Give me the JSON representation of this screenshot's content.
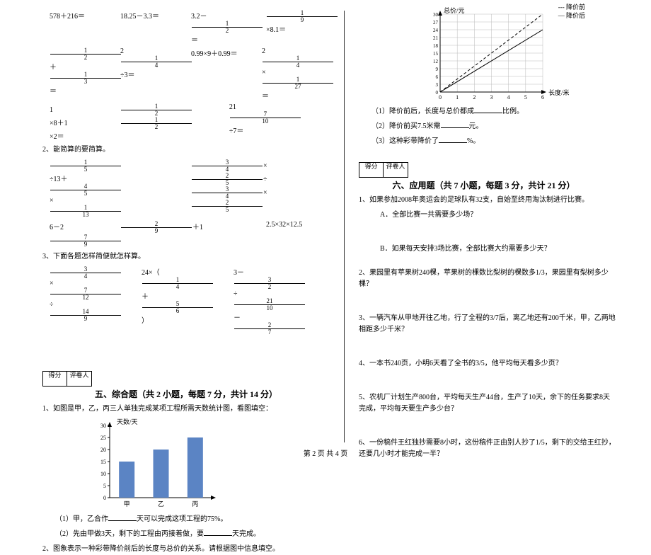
{
  "footer": "第 2 页 共 4 页",
  "left": {
    "eq_row1": {
      "a": "578＋216＝",
      "b": "18.25－3.3＝",
      "c_pre": "3.2－",
      "c_frac_n": "1",
      "c_frac_d": "2",
      "c_post": "＝",
      "d_frac_n": "1",
      "d_frac_d": "9",
      "d_post": "×8.1＝"
    },
    "eq_row2": {
      "a_n1": "1",
      "a_d1": "2",
      "a_mid": "＋",
      "a_n2": "1",
      "a_d2": "3",
      "a_post": "＝",
      "b_w": "2",
      "b_n": "1",
      "b_d": "4",
      "b_post": "÷3＝",
      "c": "0.99×9＋0.99＝",
      "d_w": "2",
      "d_n": "1",
      "d_d": "4",
      "d_mid": "×",
      "d_n2": "1",
      "d_d2": "27",
      "d_post": "＝"
    },
    "eq_row3": {
      "a_w": "1",
      "a_n": "1",
      "a_d": "2",
      "a_mid": "×8＋1",
      "a_n2": "1",
      "a_d2": "2",
      "a_post": "×2＝",
      "b_w": "21",
      "b_n": "7",
      "b_d": "10",
      "b_post": "÷7＝"
    },
    "q2": "2、能简算的要简算。",
    "eq_row4": {
      "a_n1": "1",
      "a_d1": "5",
      "a_mid": "÷13＋",
      "a_n2": "4",
      "a_d2": "5",
      "a_mid2": "×",
      "a_n3": "1",
      "a_d3": "13",
      "b_n1": "3",
      "b_d1": "4",
      "b_mid": "×",
      "b_n2": "2",
      "b_d2": "5",
      "b_mid2": "÷",
      "b_n3": "3",
      "b_d3": "4",
      "b_mid3": "×",
      "b_n4": "2",
      "b_d4": "5"
    },
    "eq_row5": {
      "a_pre": "6－2",
      "a_n1": "2",
      "a_d1": "9",
      "a_mid": "＋1",
      "a_n2": "7",
      "a_d2": "9",
      "b": "2.5×32×12.5"
    },
    "q3": "3、下面各题怎样简便就怎样算。",
    "eq_row6": {
      "a_n1": "3",
      "a_d1": "4",
      "a_mid": "×",
      "a_n2": "7",
      "a_d2": "12",
      "a_mid2": "÷",
      "a_n3": "14",
      "a_d3": "9",
      "b_pre": "24×（",
      "b_n1": "1",
      "b_d1": "4",
      "b_mid": "＋",
      "b_n2": "5",
      "b_d2": "6",
      "b_post": "）",
      "c_pre": "3－",
      "c_n1": "3",
      "c_d1": "2",
      "c_mid": "÷",
      "c_n2": "21",
      "c_d2": "10",
      "c_mid2": "－",
      "c_n3": "2",
      "c_d3": "7"
    },
    "score_labels": [
      "得分",
      "评卷人"
    ],
    "section5": "五、综合题（共 2 小题，每题 7 分，共计 14 分）",
    "q5_1": "1、如图是甲，乙，丙三人单独完成某项工程所需天数统计图，看图填空：",
    "bar_chart": {
      "y_label": "天数/天",
      "y_ticks": [
        "30",
        "25",
        "20",
        "15",
        "10",
        "5",
        "0"
      ],
      "x_labels": [
        "甲",
        "乙",
        "丙"
      ],
      "values": [
        15,
        20,
        25
      ],
      "y_max": 30,
      "bar_color": "#5b84c4",
      "axis_color": "#000"
    },
    "q5_1_1_pre": "（1）甲，乙合作",
    "q5_1_1_post": "天可以完成这项工程的75%。",
    "q5_1_2_pre": "（2）先由甲做3天，剩下的工程由丙接着做，要",
    "q5_1_2_post": "天完成。",
    "q5_2": "2、图象表示一种彩带降价前后的长度与总价的关系。请根据图中信息填空。"
  },
  "right": {
    "line_chart": {
      "y_label": "总价/元",
      "x_label": "长度/米",
      "legend1": "--- 降价前",
      "legend2": "— 降价后",
      "y_ticks": [
        "30",
        "27",
        "24",
        "21",
        "18",
        "15",
        "12",
        "9",
        "6",
        "3",
        "0"
      ],
      "x_ticks": [
        "0",
        "1",
        "2",
        "3",
        "4",
        "5",
        "6"
      ],
      "axis_color": "#000",
      "grid_color": "#bbb",
      "line1_dash": true,
      "line2_dash": false,
      "line1": [
        [
          0,
          0
        ],
        [
          6,
          30
        ]
      ],
      "line2": [
        [
          0,
          0
        ],
        [
          6,
          24
        ]
      ]
    },
    "r1_pre": "（1）降价前后，长度与总价都成",
    "r1_post": "比例。",
    "r2_pre": "（2）降价前买7.5米需",
    "r2_post": "元。",
    "r3_pre": "（3）这种彩带降价了",
    "r3_post": "%。",
    "score_labels": [
      "得分",
      "评卷人"
    ],
    "section6": "六、应用题（共 7 小题，每题 3 分，共计 21 分）",
    "q1": "1、如果参加2008年奥运会的足球队有32支，自始至终用淘汰制进行比赛。",
    "q1a": "A．全部比赛一共需要多少场？",
    "q1b": "B．如果每天安排3场比赛，全部比赛大约需要多少天？",
    "q2": "2、果园里有苹果树240棵，苹果树的棵数比梨树的棵数多1/3，果园里有梨树多少棵？",
    "q3": "3、一辆汽车从甲地开往乙地，行了全程的3/7后，离乙地还有200千米，甲，乙两地相距多少千米？",
    "q4": "4、一本书240页，小明6天看了全书的3/5，他平均每天看多少页？",
    "q5": "5、农机厂计划生产800台，平均每天生产44台，生产了10天，余下的任务要求8天完成，平均每天要生产多少台？",
    "q6": "6、一份稿件王红独抄需要8小时，这份稿件正由别人抄了1/5，剩下的交给王红抄，还要几小时才能完成一半？"
  }
}
